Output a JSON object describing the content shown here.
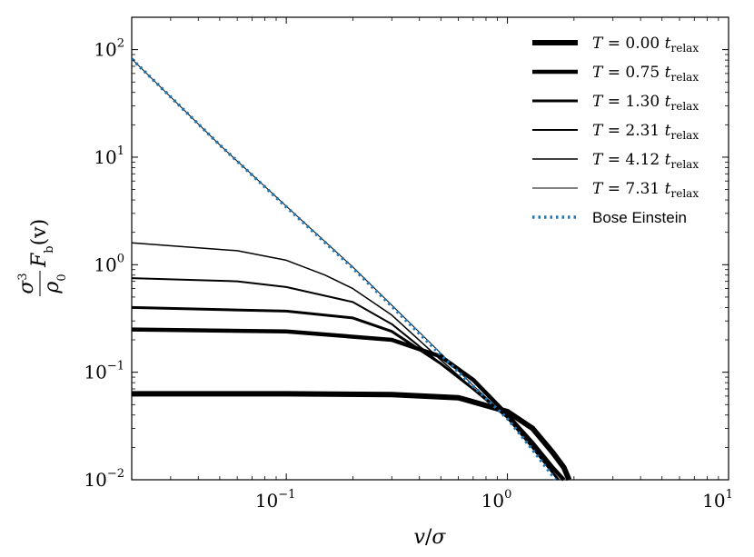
{
  "chart_data": {
    "type": "line",
    "title": "",
    "xlabel": "v/σ",
    "ylabel": "σ³/ρ₀ F_b(v)",
    "xscale": "log",
    "yscale": "log",
    "xlim": [
      0.02,
      10
    ],
    "ylim": [
      0.01,
      200
    ],
    "x_ticks": [
      {
        "value": 0.1,
        "base": "10",
        "exp": "−1"
      },
      {
        "value": 1,
        "base": "10",
        "exp": "0"
      },
      {
        "value": 10,
        "base": "10",
        "exp": "1"
      }
    ],
    "y_ticks": [
      {
        "value": 0.01,
        "base": "10",
        "exp": "−2"
      },
      {
        "value": 0.1,
        "base": "10",
        "exp": "−1"
      },
      {
        "value": 1,
        "base": "10",
        "exp": "0"
      },
      {
        "value": 10,
        "base": "10",
        "exp": "1"
      },
      {
        "value": 100,
        "base": "10",
        "exp": "2"
      }
    ],
    "grid": false,
    "legend_position": "top-right",
    "series": [
      {
        "name": "T = 0.00 t_relax",
        "label_T": "0.00",
        "color": "#000000",
        "x": [
          0.02,
          0.1,
          0.3,
          0.6,
          1.0,
          1.3,
          1.6,
          1.8,
          1.9
        ],
        "y": [
          0.063,
          0.063,
          0.062,
          0.058,
          0.043,
          0.03,
          0.018,
          0.013,
          0.01
        ]
      },
      {
        "name": "T = 0.75 t_relax",
        "label_T": "0.75",
        "color": "#000000",
        "x": [
          0.02,
          0.1,
          0.3,
          0.5,
          0.7,
          1.0,
          1.3,
          1.6,
          1.8
        ],
        "y": [
          0.25,
          0.24,
          0.2,
          0.14,
          0.085,
          0.04,
          0.022,
          0.013,
          0.01
        ]
      },
      {
        "name": "T = 1.30 t_relax",
        "label_T": "1.30",
        "color": "#000000",
        "x": [
          0.02,
          0.1,
          0.2,
          0.3,
          0.5,
          0.7,
          1.0,
          1.3,
          1.7
        ],
        "y": [
          0.4,
          0.37,
          0.32,
          0.24,
          0.12,
          0.07,
          0.038,
          0.02,
          0.01
        ]
      },
      {
        "name": "T = 2.31 t_relax",
        "label_T": "2.31",
        "color": "#000000",
        "x": [
          0.02,
          0.06,
          0.1,
          0.2,
          0.3,
          0.5,
          0.7,
          1.0,
          1.3,
          1.7
        ],
        "y": [
          0.75,
          0.7,
          0.62,
          0.45,
          0.28,
          0.12,
          0.07,
          0.038,
          0.02,
          0.01
        ]
      },
      {
        "name": "T = 4.12 t_relax",
        "label_T": "4.12",
        "color": "#000000",
        "x": [
          0.02,
          0.06,
          0.1,
          0.15,
          0.2,
          0.3,
          0.5,
          0.7,
          1.0,
          1.3,
          1.7
        ],
        "y": [
          1.6,
          1.35,
          1.1,
          0.8,
          0.6,
          0.34,
          0.13,
          0.07,
          0.038,
          0.02,
          0.01
        ]
      },
      {
        "name": "T = 7.31 t_relax",
        "label_T": "7.31",
        "color": "#000000",
        "x": [
          0.02,
          0.05,
          0.1,
          0.2,
          0.3,
          0.5,
          0.7,
          1.0,
          1.3,
          1.7
        ],
        "y": [
          82,
          13,
          3.5,
          0.95,
          0.42,
          0.15,
          0.075,
          0.038,
          0.02,
          0.01
        ]
      },
      {
        "name": "Bose Einstein",
        "color": "#1f77b4",
        "x": [
          0.02,
          0.05,
          0.1,
          0.2,
          0.3,
          0.5,
          0.7,
          1.0,
          1.3,
          1.65
        ],
        "y": [
          82,
          13,
          3.45,
          0.93,
          0.41,
          0.145,
          0.074,
          0.037,
          0.019,
          0.01
        ]
      }
    ]
  },
  "legend": {
    "T_symbol": "T",
    "equals": "=",
    "t_symbol": "t",
    "t_subscript": "relax",
    "bose_label": "Bose Einstein"
  },
  "axis": {
    "xlabel_v": "v",
    "xlabel_slash": "/",
    "xlabel_sigma": "σ",
    "ylabel_num": "σ",
    "ylabel_num_exp": "3",
    "ylabel_den": "ρ",
    "ylabel_den_sub": "0",
    "ylabel_F": "F",
    "ylabel_F_sub": "b",
    "ylabel_arg": "(v)"
  }
}
